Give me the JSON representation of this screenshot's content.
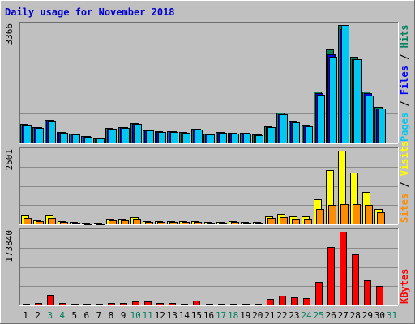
{
  "chart_data": {
    "type": "bar",
    "title": "Daily usage for November 2018",
    "days": [
      "1",
      "2",
      "3",
      "4",
      "5",
      "6",
      "7",
      "8",
      "9",
      "10",
      "11",
      "12",
      "13",
      "14",
      "15",
      "16",
      "17",
      "18",
      "19",
      "20",
      "21",
      "22",
      "23",
      "24",
      "25",
      "26",
      "27",
      "28",
      "29",
      "30",
      "31"
    ],
    "weekend_days": [
      "3",
      "4",
      "10",
      "11",
      "17",
      "18",
      "24",
      "25",
      "31"
    ],
    "colors": {
      "background": "#C0C0C0",
      "title": "#0000CC",
      "hits": "#00805C",
      "files": "#0000FF",
      "pages": "#00C8F0",
      "visits": "#FFFF00",
      "sites": "#FF8C00",
      "kbytes": "#FF0000",
      "weekend_label": "#00805C",
      "weekday_label": "#000000"
    },
    "panels": [
      {
        "key": "hits_files_pages",
        "max_label": "3366",
        "ymax": 3366,
        "side_labels": [
          {
            "text": "Pages",
            "color": "#00C8F0"
          },
          {
            "text": " / ",
            "color": "#000000"
          },
          {
            "text": "Files",
            "color": "#0000FF"
          },
          {
            "text": " / ",
            "color": "#000000"
          },
          {
            "text": "Hits",
            "color": "#00805C"
          }
        ],
        "series": [
          {
            "name": "Hits",
            "color": "#00805C",
            "values": [
              545,
              460,
              680,
              330,
              270,
              210,
              170,
              430,
              460,
              570,
              380,
              340,
              350,
              320,
              420,
              270,
              330,
              300,
              300,
              260,
              490,
              870,
              650,
              520,
              1470,
              2680,
              3366,
              2460,
              1470,
              1030,
              null
            ]
          },
          {
            "name": "Files",
            "color": "#0000FF",
            "values": [
              530,
              450,
              660,
              320,
              260,
              200,
              165,
              420,
              450,
              560,
              370,
              330,
              340,
              310,
              410,
              260,
              320,
              290,
              290,
              250,
              470,
              840,
              620,
              500,
              1420,
              2530,
              3250,
              2400,
              1420,
              1000,
              null
            ]
          },
          {
            "name": "Pages",
            "color": "#00C8F0",
            "values": [
              520,
              440,
              650,
              310,
              250,
              190,
              160,
              410,
              440,
              550,
              360,
              320,
              330,
              300,
              400,
              250,
              310,
              280,
              280,
              240,
              460,
              820,
              600,
              490,
              1380,
              2470,
              3366,
              2400,
              1360,
              980,
              null
            ]
          }
        ]
      },
      {
        "key": "visits_sites",
        "max_label": "2501",
        "ymax": 2501,
        "side_labels": [
          {
            "text": "Sites",
            "color": "#FF8C00"
          },
          {
            "text": " / ",
            "color": "#000000"
          },
          {
            "text": "Visits",
            "color": "#FFFF00"
          }
        ],
        "series": [
          {
            "name": "Visits",
            "color": "#FFFF00",
            "values": [
              300,
              140,
              300,
              110,
              90,
              60,
              55,
              190,
              180,
              240,
              110,
              110,
              120,
              100,
              100,
              80,
              80,
              100,
              90,
              80,
              280,
              350,
              270,
              270,
              850,
              1850,
              2501,
              1760,
              1100,
              530,
              null
            ]
          },
          {
            "name": "Sites",
            "color": "#FF8C00",
            "values": [
              230,
              110,
              210,
              80,
              60,
              40,
              40,
              140,
              140,
              190,
              80,
              80,
              90,
              70,
              70,
              60,
              60,
              70,
              60,
              60,
              210,
              240,
              190,
              190,
              530,
              660,
              700,
              690,
              650,
              410,
              null
            ]
          }
        ]
      },
      {
        "key": "kbytes",
        "max_label": "173840",
        "ymax": 173840,
        "side_labels": [
          {
            "text": "KBytes",
            "color": "#FF0000"
          }
        ],
        "series": [
          {
            "name": "KBytes",
            "color": "#FF0000",
            "values": [
              4500,
              6000,
              24000,
              5500,
              4500,
              3500,
              3000,
              6000,
              6500,
              9000,
              9000,
              6000,
              5500,
              3500,
              11000,
              3500,
              3500,
              4500,
              4500,
              4000,
              15000,
              23000,
              19000,
              18000,
              55000,
              137000,
              173840,
              120000,
              60000,
              46000,
              null
            ]
          }
        ]
      }
    ]
  }
}
